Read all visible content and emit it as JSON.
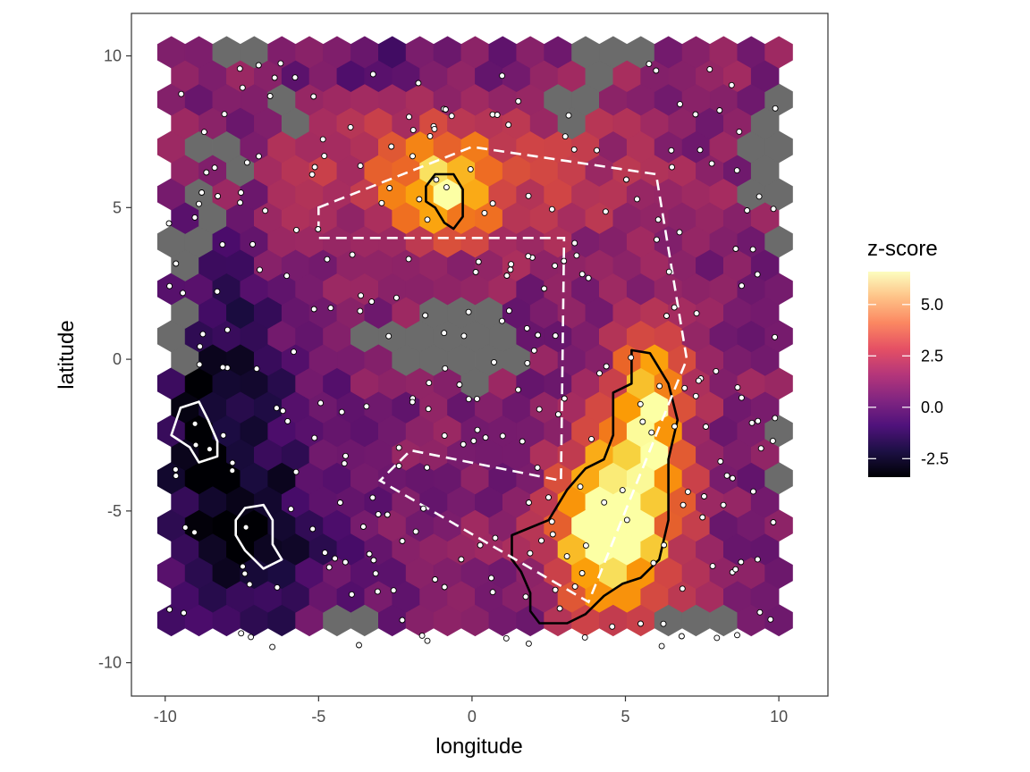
{
  "chart_data": {
    "type": "heatmap",
    "subtype": "hexbin",
    "title": "",
    "xlabel": "longitude",
    "ylabel": "latitude",
    "xlim": [
      -11.1,
      11.6
    ],
    "ylim": [
      -11.1,
      11.4
    ],
    "xticks": [
      -10,
      -5,
      0,
      5,
      10
    ],
    "yticks": [
      -10,
      -5,
      0,
      5,
      10
    ],
    "grid": false,
    "hex_grid": {
      "x_spacing": 0.9,
      "y_spacing": 0.78,
      "x_min": -9.8,
      "y_min": -8.6,
      "rows": 25,
      "cols": 23
    },
    "missing_color": "#6b6b6b",
    "missing_cells": [
      [
        21,
        4
      ],
      [
        22,
        4
      ],
      [
        21,
        14
      ],
      [
        22,
        14
      ],
      [
        22,
        15
      ],
      [
        23,
        15
      ],
      [
        24,
        2
      ],
      [
        24,
        3
      ],
      [
        24,
        15
      ],
      [
        24,
        16
      ],
      [
        24,
        17
      ],
      [
        20,
        2
      ],
      [
        19,
        2
      ],
      [
        20,
        1
      ],
      [
        18,
        1
      ],
      [
        17,
        1
      ],
      [
        16,
        1
      ],
      [
        16,
        0
      ],
      [
        15,
        0
      ],
      [
        20,
        21
      ],
      [
        20,
        22
      ],
      [
        19,
        21
      ],
      [
        19,
        22
      ],
      [
        18,
        21
      ],
      [
        18,
        22
      ],
      [
        21,
        21
      ],
      [
        21,
        22
      ],
      [
        22,
        22
      ],
      [
        17,
        22
      ],
      [
        16,
        22
      ],
      [
        15,
        22
      ],
      [
        13,
        0
      ],
      [
        12,
        0
      ],
      [
        11,
        0
      ],
      [
        12,
        7
      ],
      [
        12,
        8
      ],
      [
        11,
        8
      ],
      [
        11,
        9
      ],
      [
        12,
        9
      ],
      [
        13,
        9
      ],
      [
        13,
        10
      ],
      [
        12,
        10
      ],
      [
        11,
        10
      ],
      [
        10,
        11
      ],
      [
        11,
        11
      ],
      [
        12,
        11
      ],
      [
        13,
        11
      ],
      [
        11,
        12
      ],
      [
        12,
        12
      ],
      [
        0,
        6
      ],
      [
        0,
        7
      ],
      [
        0,
        18
      ],
      [
        0,
        19
      ],
      [
        0,
        20
      ],
      [
        5,
        22
      ],
      [
        6,
        22
      ],
      [
        7,
        22
      ],
      [
        8,
        22
      ],
      [
        9,
        22
      ]
    ],
    "colorscale": {
      "name": "z-score",
      "min": -3.4,
      "max": 6.6,
      "ticks": [
        -2.5,
        0.0,
        2.5,
        5.0
      ],
      "stops": [
        "#000004",
        "#1b0c41",
        "#4a0c6b",
        "#781c6d",
        "#a52c60",
        "#cf4446",
        "#ed6925",
        "#fb9b06",
        "#f7d13d",
        "#fcffa4"
      ],
      "legend_stops": [
        "#000004",
        "#1c1044",
        "#4f127b",
        "#812581",
        "#b5367a",
        "#e55064",
        "#fb8761",
        "#fec287",
        "#fcfdbf"
      ]
    },
    "hotspots": [
      {
        "center": [
          4.6,
          -5.6
        ],
        "spread": [
          1.3,
          1.9
        ],
        "amplitude": 8.0
      },
      {
        "center": [
          5.8,
          -1.6
        ],
        "spread": [
          0.9,
          1.9
        ],
        "amplitude": 5.5
      },
      {
        "center": [
          -0.9,
          5.6
        ],
        "spread": [
          1.1,
          0.9
        ],
        "amplitude": 4.2
      },
      {
        "center": [
          -0.5,
          6.5
        ],
        "spread": [
          3.8,
          1.9
        ],
        "amplitude": 2.4
      },
      {
        "center": [
          -8.6,
          -1.7
        ],
        "spread": [
          1.9,
          3.6
        ],
        "amplitude": -3.0
      },
      {
        "center": [
          -6.8,
          -6.3
        ],
        "spread": [
          1.8,
          2.2
        ],
        "amplitude": -2.3
      },
      {
        "center": [
          -2.5,
          9.5
        ],
        "spread": [
          3.0,
          1.3
        ],
        "amplitude": -1.2
      }
    ],
    "outlines": [
      {
        "color": "#000000",
        "points": [
          [
            1.3,
            -5.8
          ],
          [
            1.9,
            -5.55
          ],
          [
            2.5,
            -5.3
          ],
          [
            3.1,
            -4.3
          ],
          [
            3.7,
            -3.6
          ],
          [
            4.3,
            -3.3
          ],
          [
            4.6,
            -2.5
          ],
          [
            4.6,
            -1.1
          ],
          [
            5.2,
            -0.8
          ],
          [
            5.2,
            0.3
          ],
          [
            5.8,
            0.2
          ],
          [
            6.4,
            -0.8
          ],
          [
            6.7,
            -2.0
          ],
          [
            6.4,
            -3.3
          ],
          [
            6.4,
            -5.3
          ],
          [
            6.1,
            -6.6
          ],
          [
            5.5,
            -7.2
          ],
          [
            4.9,
            -7.4
          ],
          [
            4.3,
            -7.8
          ],
          [
            3.7,
            -8.4
          ],
          [
            3.1,
            -8.7
          ],
          [
            2.2,
            -8.7
          ],
          [
            1.9,
            -8.3
          ],
          [
            1.9,
            -7.7
          ],
          [
            1.6,
            -7.0
          ],
          [
            1.3,
            -6.6
          ]
        ]
      },
      {
        "color": "#000000",
        "points": [
          [
            -1.5,
            5.7
          ],
          [
            -1.2,
            6.1
          ],
          [
            -0.6,
            6.1
          ],
          [
            -0.3,
            5.6
          ],
          [
            -0.3,
            4.7
          ],
          [
            -0.6,
            4.3
          ],
          [
            -0.9,
            4.5
          ],
          [
            -1.2,
            5.0
          ],
          [
            -1.5,
            5.2
          ]
        ]
      },
      {
        "color": "#ffffff",
        "points": [
          [
            -9.8,
            -2.5
          ],
          [
            -9.5,
            -1.6
          ],
          [
            -8.9,
            -1.4
          ],
          [
            -8.6,
            -2.0
          ],
          [
            -8.3,
            -2.7
          ],
          [
            -8.3,
            -3.2
          ],
          [
            -8.9,
            -3.4
          ],
          [
            -9.2,
            -2.9
          ]
        ]
      },
      {
        "color": "#ffffff",
        "points": [
          [
            -7.7,
            -5.3
          ],
          [
            -7.4,
            -4.9
          ],
          [
            -6.8,
            -4.8
          ],
          [
            -6.5,
            -5.3
          ],
          [
            -6.5,
            -6.1
          ],
          [
            -6.2,
            -6.6
          ],
          [
            -6.8,
            -6.9
          ],
          [
            -7.4,
            -6.3
          ],
          [
            -7.7,
            -5.8
          ]
        ]
      }
    ],
    "dashed_outlines": [
      {
        "color": "#ffffff",
        "closed": true,
        "points": [
          [
            -5.0,
            5.0
          ],
          [
            0,
            7.0
          ],
          [
            6.0,
            6.1
          ],
          [
            7.0,
            0
          ],
          [
            3.8,
            -8.0
          ],
          [
            -3.0,
            -4.0
          ],
          [
            -2.0,
            -3.0
          ],
          [
            2.9,
            -4.0
          ],
          [
            3.0,
            4.0
          ],
          [
            -5.0,
            4.0
          ]
        ]
      }
    ],
    "point_seed": 20240611,
    "point_count": 300,
    "point_style": {
      "fill": "#ffffff",
      "stroke": "#000000"
    }
  },
  "legend": {
    "title": "z-score",
    "labels": [
      "5.0",
      "2.5",
      "0.0",
      "-2.5"
    ]
  },
  "axes": {
    "x_tick_labels": [
      "-10",
      "-5",
      "0",
      "5",
      "10"
    ],
    "y_tick_labels": [
      "10",
      "5",
      "0",
      "-5",
      "-10"
    ],
    "xlabel": "longitude",
    "ylabel": "latitude"
  }
}
